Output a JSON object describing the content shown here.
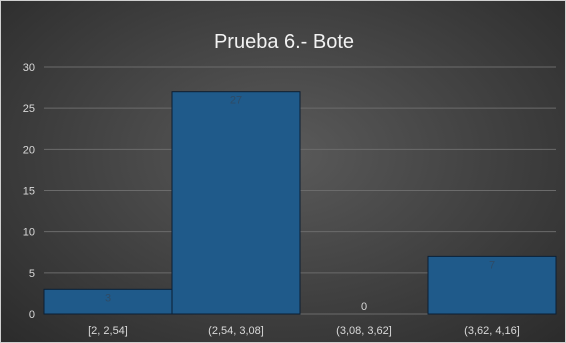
{
  "chart_data": {
    "type": "bar",
    "title": "Prueba 6.- Bote",
    "categories": [
      "[2, 2,54]",
      "(2,54, 3,08]",
      "(3,08, 3,62]",
      "(3,62, 4,16]"
    ],
    "values": [
      3,
      27,
      0,
      7
    ],
    "data_labels": [
      "3",
      "27",
      "0",
      "7"
    ],
    "ylim": [
      0,
      30
    ],
    "yticks": [
      "0",
      "5",
      "10",
      "15",
      "20",
      "25",
      "30"
    ],
    "grid": true,
    "legend": false,
    "colors": {
      "bar_fill": "#1f5a8a",
      "bar_stroke": "#0b1e33",
      "grid": "#6b6b6b",
      "data_label_on_bar": "#2e4b66",
      "data_label_empty": "#d9d9d9"
    }
  }
}
